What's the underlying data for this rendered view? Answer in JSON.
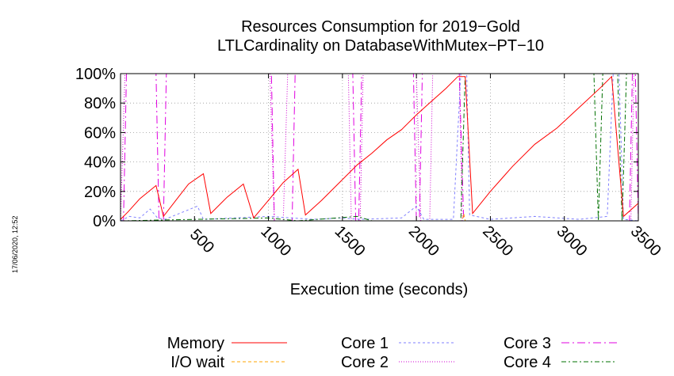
{
  "timestamp": "17/06/2020, 12:52",
  "chart_data": {
    "type": "line",
    "title": "Resources Consumption for 2019−Gold",
    "subtitle": "LTLCardinality on DatabaseWithMutex−PT−10",
    "xlabel": "Execution time (seconds)",
    "ylabel": "",
    "xlim": [
      0,
      3500
    ],
    "ylim": [
      0,
      100
    ],
    "x_ticks": [
      500,
      1000,
      1500,
      2000,
      2500,
      3000,
      3500
    ],
    "y_ticks": [
      0,
      20,
      40,
      60,
      80,
      100
    ],
    "y_tick_labels": [
      "0%",
      "20%",
      "40%",
      "60%",
      "80%",
      "100%"
    ],
    "grid": true,
    "legend": "bottom",
    "series": [
      {
        "name": "Memory",
        "color": "#ff0000",
        "dash": "",
        "points": [
          [
            0,
            1
          ],
          [
            50,
            6
          ],
          [
            130,
            15
          ],
          [
            240,
            24
          ],
          [
            290,
            3
          ],
          [
            390,
            16
          ],
          [
            460,
            25
          ],
          [
            560,
            32
          ],
          [
            610,
            5
          ],
          [
            720,
            16
          ],
          [
            830,
            25
          ],
          [
            900,
            2
          ],
          [
            1000,
            14
          ],
          [
            1100,
            26
          ],
          [
            1200,
            35
          ],
          [
            1250,
            4
          ],
          [
            1360,
            14
          ],
          [
            1480,
            26
          ],
          [
            1600,
            38
          ],
          [
            1700,
            46
          ],
          [
            1800,
            55
          ],
          [
            1900,
            62
          ],
          [
            2000,
            72
          ],
          [
            2100,
            81
          ],
          [
            2200,
            90
          ],
          [
            2280,
            98
          ],
          [
            2330,
            98
          ],
          [
            2380,
            5
          ],
          [
            2500,
            20
          ],
          [
            2650,
            37
          ],
          [
            2800,
            52
          ],
          [
            2950,
            63
          ],
          [
            3100,
            77
          ],
          [
            3250,
            91
          ],
          [
            3320,
            98
          ],
          [
            3400,
            3
          ],
          [
            3500,
            12
          ]
        ]
      },
      {
        "name": "I/O wait",
        "color": "#ffa500",
        "dash": "4,3",
        "points": [
          [
            0,
            0
          ],
          [
            2310,
            0
          ],
          [
            2320,
            5
          ],
          [
            2330,
            0
          ],
          [
            3500,
            0
          ]
        ]
      },
      {
        "name": "Core 1",
        "color": "#7f7fff",
        "dash": "3,3",
        "points": [
          [
            0,
            0
          ],
          [
            60,
            3
          ],
          [
            130,
            2
          ],
          [
            200,
            8
          ],
          [
            250,
            2
          ],
          [
            300,
            1
          ],
          [
            520,
            10
          ],
          [
            560,
            1
          ],
          [
            1000,
            3
          ],
          [
            1300,
            1
          ],
          [
            1500,
            2
          ],
          [
            1620,
            1
          ],
          [
            1900,
            2
          ],
          [
            2000,
            10
          ],
          [
            2050,
            1
          ],
          [
            2250,
            1
          ],
          [
            2300,
            100
          ],
          [
            2340,
            100
          ],
          [
            2360,
            4
          ],
          [
            2500,
            1
          ],
          [
            2800,
            3
          ],
          [
            3100,
            1
          ],
          [
            3290,
            3
          ],
          [
            3330,
            100
          ],
          [
            3370,
            100
          ],
          [
            3400,
            1
          ],
          [
            3500,
            0
          ]
        ]
      },
      {
        "name": "Core 2",
        "color": "#d000d0",
        "dash": "1,2",
        "points": [
          [
            0,
            0
          ],
          [
            30,
            100
          ],
          [
            1010,
            100
          ],
          [
            1040,
            0
          ],
          [
            1100,
            0
          ],
          [
            1130,
            100
          ],
          [
            1540,
            100
          ],
          [
            1560,
            0
          ],
          [
            1620,
            0
          ],
          [
            1640,
            100
          ],
          [
            2000,
            100
          ],
          [
            2030,
            0
          ],
          [
            2090,
            0
          ],
          [
            2110,
            100
          ],
          [
            2290,
            100
          ],
          [
            2310,
            0
          ],
          [
            3450,
            0
          ],
          [
            3470,
            100
          ],
          [
            3500,
            100
          ]
        ]
      },
      {
        "name": "Core 3",
        "color": "#e000e0",
        "dash": "10,4,2,4",
        "points": [
          [
            0,
            0
          ],
          [
            20,
            0
          ],
          [
            40,
            100
          ],
          [
            240,
            100
          ],
          [
            260,
            0
          ],
          [
            290,
            0
          ],
          [
            310,
            100
          ],
          [
            1020,
            100
          ],
          [
            1040,
            0
          ],
          [
            1160,
            0
          ],
          [
            1180,
            100
          ],
          [
            1570,
            100
          ],
          [
            1590,
            0
          ],
          [
            1610,
            0
          ],
          [
            1630,
            100
          ],
          [
            1980,
            100
          ],
          [
            2000,
            0
          ],
          [
            2020,
            0
          ],
          [
            2040,
            100
          ],
          [
            2290,
            100
          ],
          [
            2320,
            0
          ],
          [
            3440,
            0
          ],
          [
            3460,
            100
          ],
          [
            3480,
            100
          ],
          [
            3500,
            0
          ]
        ]
      },
      {
        "name": "Core 4",
        "color": "#007000",
        "dash": "6,3,2,3",
        "points": [
          [
            0,
            0
          ],
          [
            1000,
            2
          ],
          [
            1200,
            0
          ],
          [
            1600,
            3
          ],
          [
            1700,
            0
          ],
          [
            2300,
            0
          ],
          [
            2330,
            100
          ],
          [
            3200,
            100
          ],
          [
            3230,
            0
          ],
          [
            3260,
            100
          ],
          [
            3360,
            100
          ],
          [
            3390,
            0
          ],
          [
            3420,
            100
          ],
          [
            3500,
            100
          ]
        ]
      }
    ]
  }
}
